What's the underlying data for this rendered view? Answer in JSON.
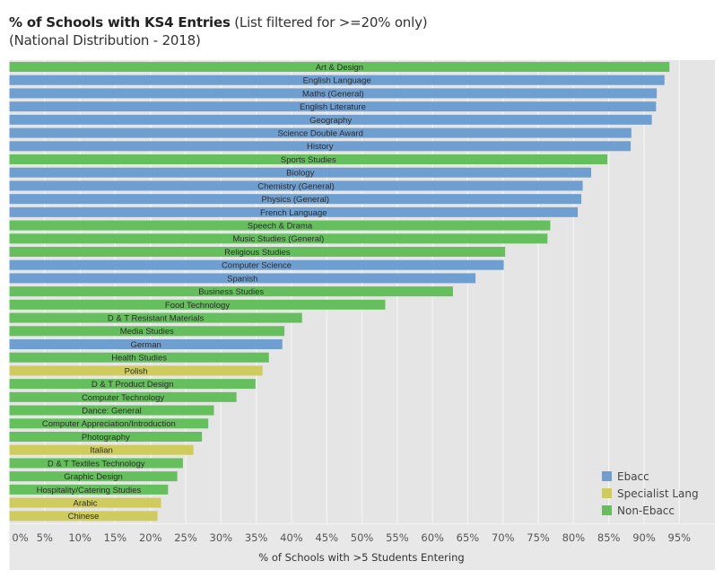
{
  "header": {
    "title_bold": "% of Schools with KS4 Entries",
    "title_rest": " (List filtered for >=20% only)",
    "subtitle": "(National Distribution - 2018)"
  },
  "colors": {
    "Ebacc": "#6f9fd0",
    "Specialist Lang": "#cfcc5d",
    "Non-Ebacc": "#64bf5c",
    "plot_background": "#e5e5e5",
    "gridline": "#f3f3f3"
  },
  "chart_data": {
    "type": "bar",
    "orientation": "horizontal",
    "title": "% of Schools with KS4 Entries (List filtered for >=20% only)",
    "subtitle": "(National Distribution - 2018)",
    "xlabel": "% of Schools with >5 Students Entering",
    "ylabel": "",
    "xlim": [
      0,
      100
    ],
    "x_ticks": [
      "0%",
      "5%",
      "10%",
      "15%",
      "20%",
      "25%",
      "30%",
      "35%",
      "40%",
      "45%",
      "50%",
      "55%",
      "60%",
      "65%",
      "70%",
      "75%",
      "80%",
      "85%",
      "90%",
      "95%"
    ],
    "x_tick_values": [
      0,
      5,
      10,
      15,
      20,
      25,
      30,
      35,
      40,
      45,
      50,
      55,
      60,
      65,
      70,
      75,
      80,
      85,
      90,
      95
    ],
    "grid": true,
    "legend": {
      "placement": "bottom-right",
      "entries": [
        "Ebacc",
        "Specialist Lang",
        "Non-Ebacc"
      ]
    },
    "categories": [
      "Art & Design",
      "English Language",
      "Maths (General)",
      "English Literature",
      "Geography",
      "Science Double Award",
      "History",
      "Sports Studies",
      "Biology",
      "Chemistry (General)",
      "Physics (General)",
      "French Language",
      "Speech & Drama",
      "Music Studies (General)",
      "Religious Studies",
      "Computer Science",
      "Spanish",
      "Business Studies",
      "Food Technology",
      "D & T Resistant Materials",
      "Media Studies",
      "German",
      "Health Studies",
      "Polish",
      "D & T Product Design",
      "Computer Technology",
      "Dance: General",
      "Computer Appreciation/Introduction",
      "Photography",
      "Italian",
      "D & T Textiles Technology",
      "Graphic Design",
      "Hospitality/Catering Studies",
      "Arabic",
      "Chinese"
    ],
    "values": [
      93.6,
      92.9,
      91.8,
      91.7,
      91.1,
      88.2,
      88.1,
      84.8,
      82.5,
      81.3,
      81.1,
      80.6,
      76.7,
      76.3,
      70.3,
      70.1,
      66.1,
      62.9,
      53.3,
      41.5,
      39.0,
      38.7,
      36.8,
      35.9,
      34.9,
      32.2,
      29.0,
      28.2,
      27.3,
      26.1,
      24.6,
      23.8,
      22.5,
      21.5,
      21.0
    ],
    "groups": [
      "Non-Ebacc",
      "Ebacc",
      "Ebacc",
      "Ebacc",
      "Ebacc",
      "Ebacc",
      "Ebacc",
      "Non-Ebacc",
      "Ebacc",
      "Ebacc",
      "Ebacc",
      "Ebacc",
      "Non-Ebacc",
      "Non-Ebacc",
      "Non-Ebacc",
      "Ebacc",
      "Ebacc",
      "Non-Ebacc",
      "Non-Ebacc",
      "Non-Ebacc",
      "Non-Ebacc",
      "Ebacc",
      "Non-Ebacc",
      "Specialist Lang",
      "Non-Ebacc",
      "Non-Ebacc",
      "Non-Ebacc",
      "Non-Ebacc",
      "Non-Ebacc",
      "Specialist Lang",
      "Non-Ebacc",
      "Non-Ebacc",
      "Non-Ebacc",
      "Specialist Lang",
      "Specialist Lang"
    ]
  }
}
